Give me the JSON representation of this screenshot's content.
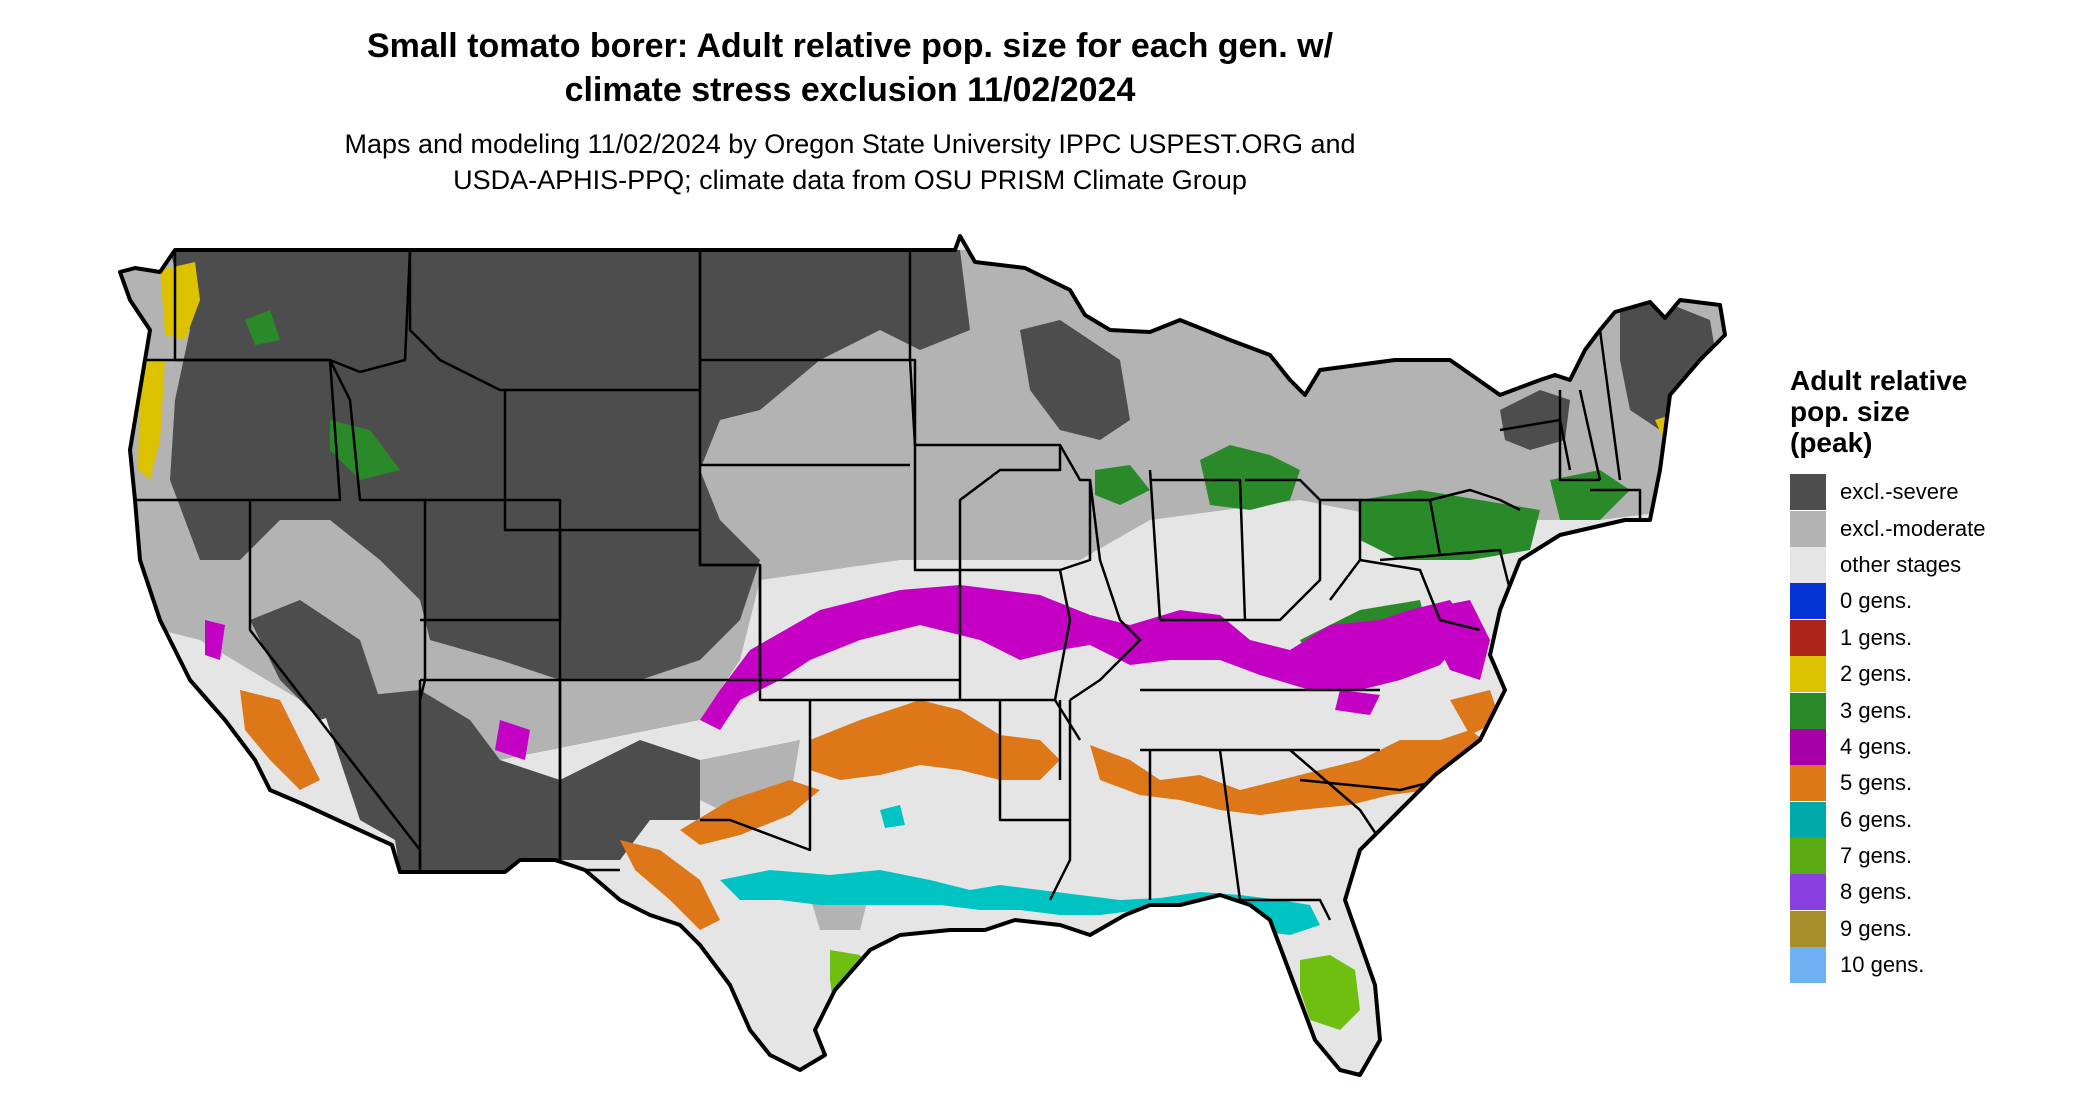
{
  "title": {
    "line1": "Small tomato borer: Adult relative pop. size for each gen. w/",
    "line2": "climate stress exclusion 11/02/2024"
  },
  "subtitle": {
    "line1": "Maps and modeling 11/02/2024 by Oregon State University IPPC USPEST.ORG and",
    "line2": "USDA-APHIS-PPQ; climate data from OSU PRISM Climate Group"
  },
  "legend": {
    "title_line1": "Adult relative",
    "title_line2": "pop. size",
    "title_line3": "(peak)",
    "items": [
      {
        "label": "excl.-severe",
        "color": "#4d4d4d"
      },
      {
        "label": "excl.-moderate",
        "color": "#b3b3b3"
      },
      {
        "label": "other stages",
        "color": "#e5e5e5"
      },
      {
        "label": "0 gens.",
        "color": "#0433d6"
      },
      {
        "label": "1 gens.",
        "color": "#ab2417"
      },
      {
        "label": "2 gens.",
        "color": "#dcc200"
      },
      {
        "label": "3 gens.",
        "color": "#2a8a2a"
      },
      {
        "label": "4 gens.",
        "color": "#a800a8"
      },
      {
        "label": "5 gens.",
        "color": "#dd7718"
      },
      {
        "label": "6 gens.",
        "color": "#00aaaa"
      },
      {
        "label": "7 gens.",
        "color": "#5aaa14"
      },
      {
        "label": "8 gens.",
        "color": "#8a3fe0"
      },
      {
        "label": "9 gens.",
        "color": "#a68e2a"
      },
      {
        "label": "10 gens.",
        "color": "#6fb0f2"
      }
    ]
  },
  "map_colors": {
    "outline": "#000000",
    "excl_severe": "#4d4d4d",
    "excl_moderate": "#b3b3b3",
    "other_stages": "#e5e5e5",
    "gen2": "#dcc200",
    "gen3": "#2a8a2a",
    "gen4": "#c400c4",
    "gen5": "#dd7718",
    "gen6": "#00c4c4",
    "gen7": "#6fbf10",
    "gen8": "#8a3fe0"
  }
}
